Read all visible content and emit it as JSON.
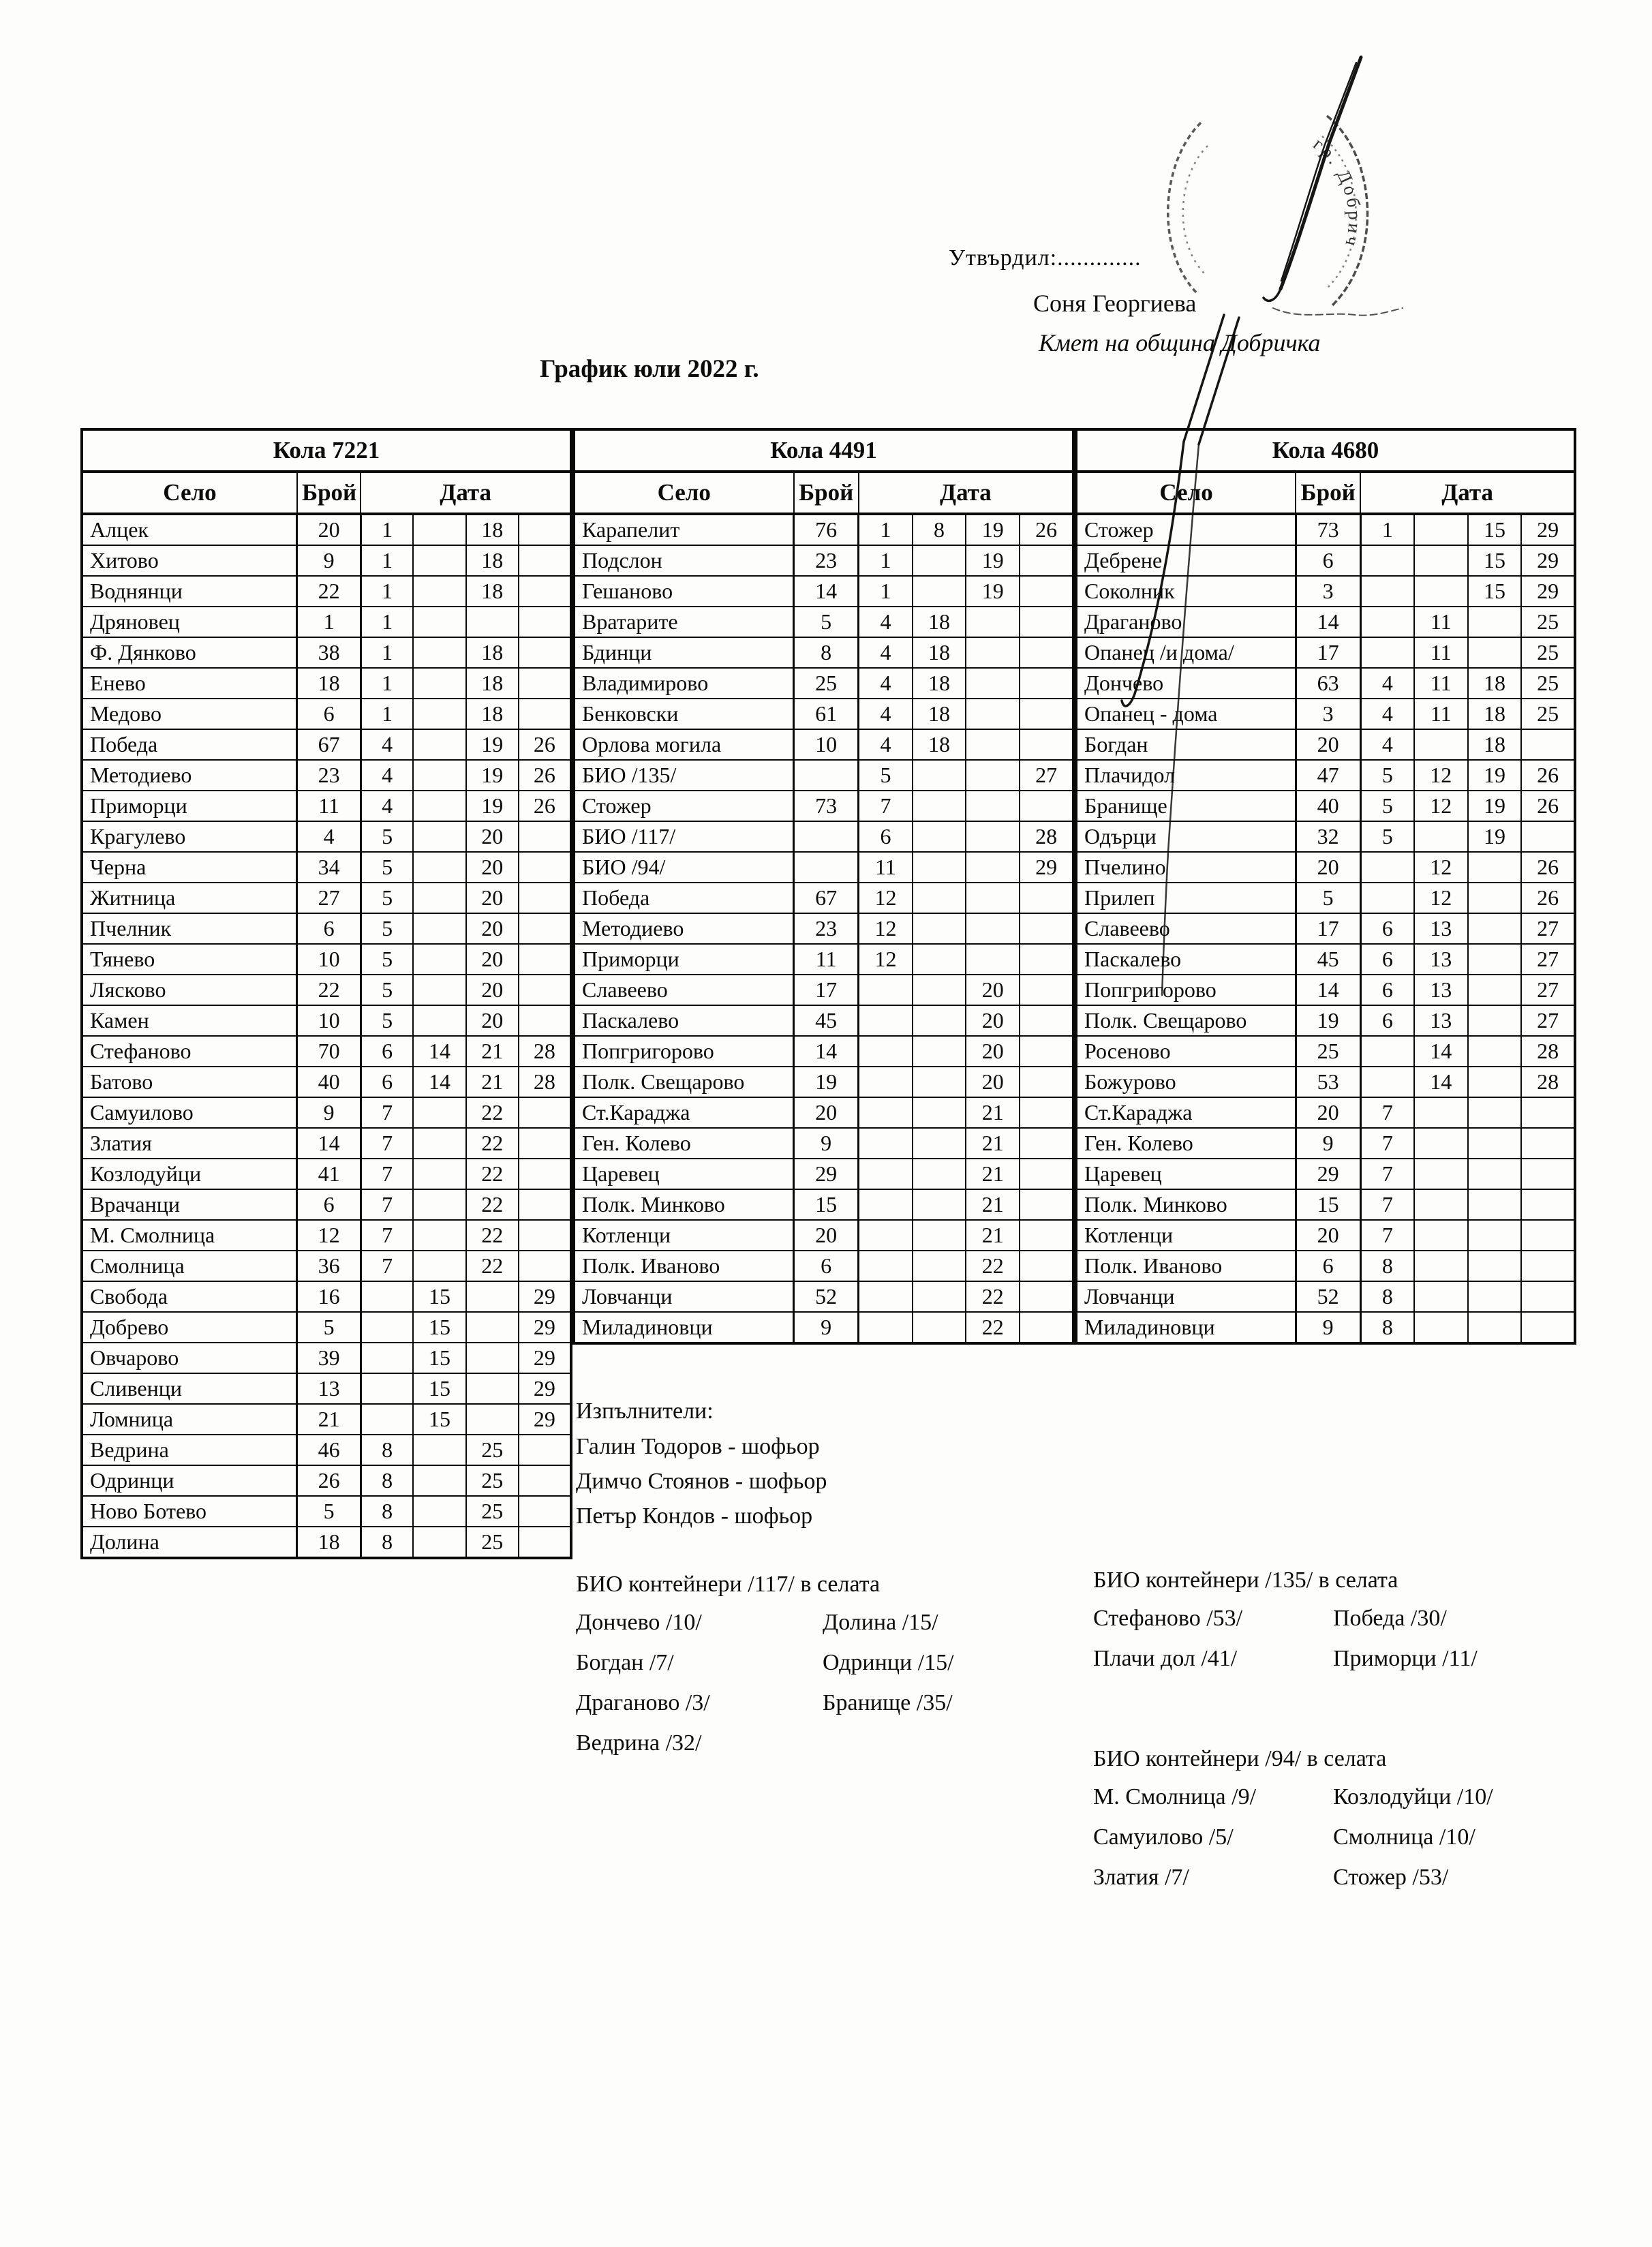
{
  "approval": {
    "label": "Утвърдил:.............",
    "name": "Соня Георгиева",
    "role": "Кмет  на община Добричка"
  },
  "stamp_text": "гр. Добрич",
  "title": "График юли 2022 г.",
  "columns": {
    "village": "Село",
    "count": "Брой",
    "date": "Дата"
  },
  "tables": [
    {
      "car": "Кола 7221",
      "rows": [
        [
          "Алцек",
          "20",
          "1",
          "",
          "18",
          ""
        ],
        [
          "Хитово",
          "9",
          "1",
          "",
          "18",
          ""
        ],
        [
          "Воднянци",
          "22",
          "1",
          "",
          "18",
          ""
        ],
        [
          "Дряновец",
          "1",
          "1",
          "",
          "",
          ""
        ],
        [
          "Ф. Дянково",
          "38",
          "1",
          "",
          "18",
          ""
        ],
        [
          "Енево",
          "18",
          "1",
          "",
          "18",
          ""
        ],
        [
          "Медово",
          "6",
          "1",
          "",
          "18",
          ""
        ],
        [
          "Победа",
          "67",
          "4",
          "",
          "19",
          "26"
        ],
        [
          "Методиево",
          "23",
          "4",
          "",
          "19",
          "26"
        ],
        [
          "Приморци",
          "11",
          "4",
          "",
          "19",
          "26"
        ],
        [
          "Крагулево",
          "4",
          "5",
          "",
          "20",
          ""
        ],
        [
          "Черна",
          "34",
          "5",
          "",
          "20",
          ""
        ],
        [
          "Житница",
          "27",
          "5",
          "",
          "20",
          ""
        ],
        [
          "Пчелник",
          "6",
          "5",
          "",
          "20",
          ""
        ],
        [
          "Тянево",
          "10",
          "5",
          "",
          "20",
          ""
        ],
        [
          "Лясково",
          "22",
          "5",
          "",
          "20",
          ""
        ],
        [
          "Камен",
          "10",
          "5",
          "",
          "20",
          ""
        ],
        [
          "Стефаново",
          "70",
          "6",
          "14",
          "21",
          "28"
        ],
        [
          "Батово",
          "40",
          "6",
          "14",
          "21",
          "28"
        ],
        [
          "Самуилово",
          "9",
          "7",
          "",
          "22",
          ""
        ],
        [
          "Златия",
          "14",
          "7",
          "",
          "22",
          ""
        ],
        [
          "Козлодуйци",
          "41",
          "7",
          "",
          "22",
          ""
        ],
        [
          "Врачанци",
          "6",
          "7",
          "",
          "22",
          ""
        ],
        [
          "М. Смолница",
          "12",
          "7",
          "",
          "22",
          ""
        ],
        [
          "Смолница",
          "36",
          "7",
          "",
          "22",
          ""
        ],
        [
          "Свобода",
          "16",
          "",
          "15",
          "",
          "29"
        ],
        [
          "Добрево",
          "5",
          "",
          "15",
          "",
          "29"
        ],
        [
          "Овчарово",
          "39",
          "",
          "15",
          "",
          "29"
        ],
        [
          "Сливенци",
          "13",
          "",
          "15",
          "",
          "29"
        ],
        [
          "Ломница",
          "21",
          "",
          "15",
          "",
          "29"
        ],
        [
          "Ведрина",
          "46",
          "8",
          "",
          "25",
          ""
        ],
        [
          "Одринци",
          "26",
          "8",
          "",
          "25",
          ""
        ],
        [
          "Ново Ботево",
          "5",
          "8",
          "",
          "25",
          ""
        ],
        [
          "Долина",
          "18",
          "8",
          "",
          "25",
          ""
        ]
      ]
    },
    {
      "car": "Кола 4491",
      "rows": [
        [
          "Карапелит",
          "76",
          "1",
          "8",
          "19",
          "26"
        ],
        [
          "Подслон",
          "23",
          "1",
          "",
          "19",
          ""
        ],
        [
          "Гешаново",
          "14",
          "1",
          "",
          "19",
          ""
        ],
        [
          "Вратарите",
          "5",
          "4",
          "18",
          "",
          ""
        ],
        [
          "Бдинци",
          "8",
          "4",
          "18",
          "",
          ""
        ],
        [
          "Владимирово",
          "25",
          "4",
          "18",
          "",
          ""
        ],
        [
          "Бенковски",
          "61",
          "4",
          "18",
          "",
          ""
        ],
        [
          "Орлова могила",
          "10",
          "4",
          "18",
          "",
          ""
        ],
        [
          "БИО /135/",
          "",
          "5",
          "",
          "",
          "27"
        ],
        [
          "Стожер",
          "73",
          "7",
          "",
          "",
          ""
        ],
        [
          "БИО /117/",
          "",
          "6",
          "",
          "",
          "28"
        ],
        [
          "БИО /94/",
          "",
          "11",
          "",
          "",
          "29"
        ],
        [
          "Победа",
          "67",
          "12",
          "",
          "",
          ""
        ],
        [
          "Методиево",
          "23",
          "12",
          "",
          "",
          ""
        ],
        [
          "Приморци",
          "11",
          "12",
          "",
          "",
          ""
        ],
        [
          "Славеево",
          "17",
          "",
          "",
          "20",
          ""
        ],
        [
          "Паскалево",
          "45",
          "",
          "",
          "20",
          ""
        ],
        [
          "Попгригорово",
          "14",
          "",
          "",
          "20",
          ""
        ],
        [
          "Полк. Свещарово",
          "19",
          "",
          "",
          "20",
          ""
        ],
        [
          "Ст.Караджа",
          "20",
          "",
          "",
          "21",
          ""
        ],
        [
          "Ген. Колево",
          "9",
          "",
          "",
          "21",
          ""
        ],
        [
          "Царевец",
          "29",
          "",
          "",
          "21",
          ""
        ],
        [
          "Полк. Минково",
          "15",
          "",
          "",
          "21",
          ""
        ],
        [
          "Котленци",
          "20",
          "",
          "",
          "21",
          ""
        ],
        [
          "Полк. Иваново",
          "6",
          "",
          "",
          "22",
          ""
        ],
        [
          "Ловчанци",
          "52",
          "",
          "",
          "22",
          ""
        ],
        [
          "Миладиновци",
          "9",
          "",
          "",
          "22",
          ""
        ]
      ]
    },
    {
      "car": "Кола 4680",
      "rows": [
        [
          "Стожер",
          "73",
          "1",
          "",
          "15",
          "29"
        ],
        [
          "Дебрене",
          "6",
          "",
          "",
          "15",
          "29"
        ],
        [
          "Соколник",
          "3",
          "",
          "",
          "15",
          "29"
        ],
        [
          "Драганово",
          "14",
          "",
          "11",
          "",
          "25"
        ],
        [
          "Опанец /и дома/",
          "17",
          "",
          "11",
          "",
          "25"
        ],
        [
          "Дончево",
          "63",
          "4",
          "11",
          "18",
          "25"
        ],
        [
          "Опанец - дома",
          "3",
          "4",
          "11",
          "18",
          "25"
        ],
        [
          "Богдан",
          "20",
          "4",
          "",
          "18",
          ""
        ],
        [
          "Плачидол",
          "47",
          "5",
          "12",
          "19",
          "26"
        ],
        [
          "Бранище",
          "40",
          "5",
          "12",
          "19",
          "26"
        ],
        [
          "Одърци",
          "32",
          "5",
          "",
          "19",
          ""
        ],
        [
          "Пчелино",
          "20",
          "",
          "12",
          "",
          "26"
        ],
        [
          "Прилеп",
          "5",
          "",
          "12",
          "",
          "26"
        ],
        [
          "Славеево",
          "17",
          "6",
          "13",
          "",
          "27"
        ],
        [
          "Паскалево",
          "45",
          "6",
          "13",
          "",
          "27"
        ],
        [
          "Попгригорово",
          "14",
          "6",
          "13",
          "",
          "27"
        ],
        [
          "Полк. Свещарово",
          "19",
          "6",
          "13",
          "",
          "27"
        ],
        [
          "Росеново",
          "25",
          "",
          "14",
          "",
          "28"
        ],
        [
          "Божурово",
          "53",
          "",
          "14",
          "",
          "28"
        ],
        [
          "Ст.Караджа",
          "20",
          "7",
          "",
          "",
          ""
        ],
        [
          "Ген. Колево",
          "9",
          "7",
          "",
          "",
          ""
        ],
        [
          "Царевец",
          "29",
          "7",
          "",
          "",
          ""
        ],
        [
          "Полк. Минково",
          "15",
          "7",
          "",
          "",
          ""
        ],
        [
          "Котленци",
          "20",
          "7",
          "",
          "",
          ""
        ],
        [
          "Полк. Иваново",
          "6",
          "8",
          "",
          "",
          ""
        ],
        [
          "Ловчанци",
          "52",
          "8",
          "",
          "",
          ""
        ],
        [
          "Миладиновци",
          "9",
          "8",
          "",
          "",
          ""
        ]
      ]
    }
  ],
  "executors": {
    "heading": "Изпълнители:",
    "items": [
      "Галин Тодоров - шофьор",
      "Димчо Стоянов - шофьор",
      "Петър Кондов - шофьор"
    ]
  },
  "bio_sections": [
    {
      "heading": "БИО контейнери /117/ в селата",
      "left": [
        "Дончево /10/",
        "Богдан /7/",
        "Драганово /3/",
        "Ведрина /32/"
      ],
      "right": [
        "Долина /15/",
        "Одринци /15/",
        "Бранище /35/",
        ""
      ]
    },
    {
      "heading": "БИО контейнери /135/ в селата",
      "left": [
        "Стефаново /53/",
        "Плачи дол /41/"
      ],
      "right": [
        "Победа /30/",
        "Приморци /11/"
      ]
    },
    {
      "heading": "БИО контейнери /94/ в селата",
      "left": [
        "М. Смолница /9/",
        "Самуилово /5/",
        "Златия /7/"
      ],
      "right": [
        "Козлодуйци /10/",
        "Смолница /10/",
        "Стожер /53/"
      ]
    }
  ]
}
